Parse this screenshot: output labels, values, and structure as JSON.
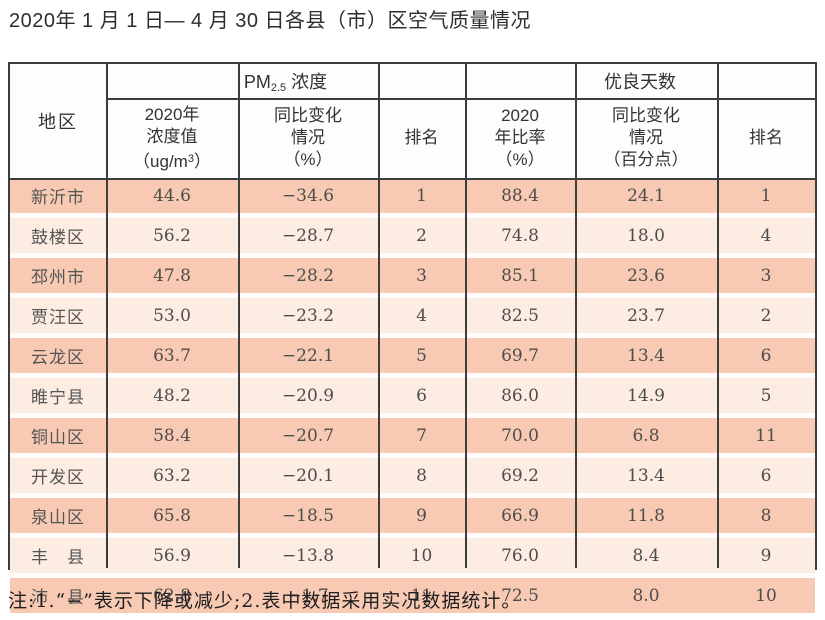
{
  "page": {
    "title": "2020年 1 月 1 日— 4 月 30 日各县（市）区空气质量情况",
    "note": "注:1.“−”表示下降或减少;2.表中数据采用实况数据统计。"
  },
  "table": {
    "header": {
      "region": "地区",
      "pm_group": {
        "pre": "PM",
        "sub": "2.5",
        "post": " 浓度"
      },
      "days_group": "优良天数",
      "pm_value": {
        "l1": "2020年",
        "l2": "浓度值",
        "l3pre": "（ug/m",
        "l3sup": "3",
        "l3post": "）"
      },
      "pm_change": "同比变化\n情况\n（%）",
      "pm_rank": "排名",
      "days_ratio": "2020\n年比率\n（%）",
      "days_change": "同比变化\n情况\n（百分点）",
      "days_rank": "排名"
    },
    "rows": [
      {
        "region": "新沂市",
        "pm_value": "44.6",
        "pm_change": "−34.6",
        "pm_rank": "1",
        "days_ratio": "88.4",
        "days_change": "24.1",
        "days_rank": "1"
      },
      {
        "region": "鼓楼区",
        "pm_value": "56.2",
        "pm_change": "−28.7",
        "pm_rank": "2",
        "days_ratio": "74.8",
        "days_change": "18.0",
        "days_rank": "4"
      },
      {
        "region": "邳州市",
        "pm_value": "47.8",
        "pm_change": "−28.2",
        "pm_rank": "3",
        "days_ratio": "85.1",
        "days_change": "23.6",
        "days_rank": "3"
      },
      {
        "region": "贾汪区",
        "pm_value": "53.0",
        "pm_change": "−23.2",
        "pm_rank": "4",
        "days_ratio": "82.5",
        "days_change": "23.7",
        "days_rank": "2"
      },
      {
        "region": "云龙区",
        "pm_value": "63.7",
        "pm_change": "−22.1",
        "pm_rank": "5",
        "days_ratio": "69.7",
        "days_change": "13.4",
        "days_rank": "6"
      },
      {
        "region": "睢宁县",
        "pm_value": "48.2",
        "pm_change": "−20.9",
        "pm_rank": "6",
        "days_ratio": "86.0",
        "days_change": "14.9",
        "days_rank": "5"
      },
      {
        "region": "铜山区",
        "pm_value": "58.4",
        "pm_change": "−20.7",
        "pm_rank": "7",
        "days_ratio": "70.0",
        "days_change": "6.8",
        "days_rank": "11"
      },
      {
        "region": "开发区",
        "pm_value": "63.2",
        "pm_change": "−20.1",
        "pm_rank": "8",
        "days_ratio": "69.2",
        "days_change": "13.4",
        "days_rank": "6"
      },
      {
        "region": "泉山区",
        "pm_value": "65.8",
        "pm_change": "−18.5",
        "pm_rank": "9",
        "days_ratio": "66.9",
        "days_change": "11.8",
        "days_rank": "8"
      },
      {
        "region": "丰　县",
        "pm_value": "56.9",
        "pm_change": "−13.8",
        "pm_rank": "10",
        "days_ratio": "76.0",
        "days_change": "8.4",
        "days_rank": "9"
      },
      {
        "region": "沛　县",
        "pm_value": "62.8",
        "pm_change": "−1.7",
        "pm_rank": "11",
        "days_ratio": "72.5",
        "days_change": "8.0",
        "days_rank": "10"
      }
    ],
    "colors": {
      "row_dark": "#f8cab4",
      "row_light": "#fcece2",
      "border": "#3d3d3d",
      "separator": "#fffdfc"
    }
  }
}
